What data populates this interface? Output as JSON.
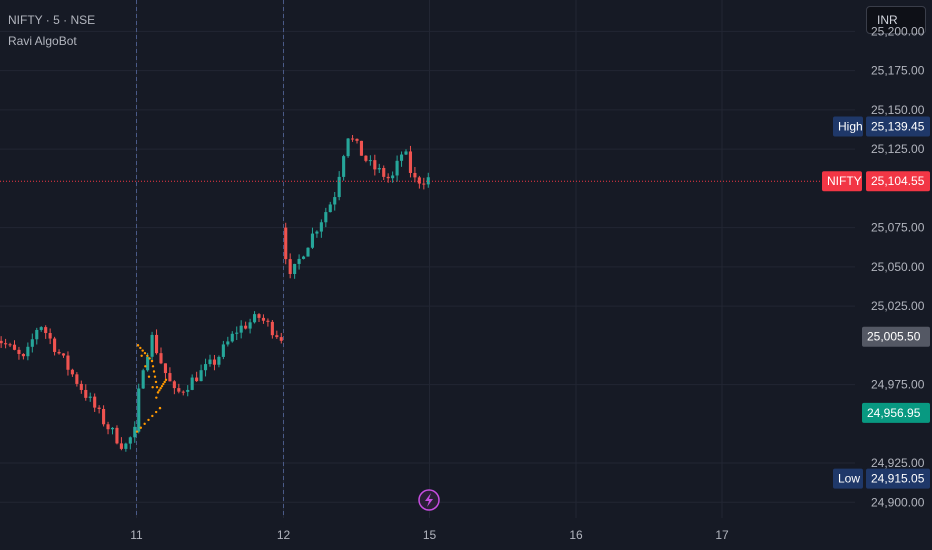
{
  "header": {
    "symbol": "NIFTY",
    "interval": "5",
    "exchange": "NSE",
    "indicator": "Ravi AlgoBot"
  },
  "currency_button": {
    "label": "INR"
  },
  "colors": {
    "background": "#161a25",
    "grid": "#222633",
    "up": "#26a69a",
    "down": "#ef5350",
    "session_line": "#4a5a88",
    "indicator_dots": "#ff9800",
    "high_low_tag": "#1f3869",
    "last_tag": "#f23645",
    "level_tag": "#545864",
    "support_tag": "#089981",
    "event_icon": "#c64de0"
  },
  "event_icon": "lightning-icon",
  "chart_data": {
    "type": "candlestick",
    "title": "",
    "ylim": [
      24890,
      25220
    ],
    "y_ticks": [
      "25,200.00",
      "25,175.00",
      "25,150.00",
      "25,125.00",
      "25,075.00",
      "25,050.00",
      "25,025.00",
      "24,975.00",
      "24,925.00",
      "24,900.00"
    ],
    "y_tick_values": [
      25200,
      25175,
      25150,
      25125,
      25075,
      25050,
      25025,
      24975,
      24925,
      24900
    ],
    "x_ticks": [
      "11",
      "12",
      "15",
      "16",
      "17"
    ],
    "session_days": [
      {
        "day": "10",
        "bars": 33,
        "open": 25010,
        "segments": [
          [
            0.25,
            24990
          ],
          [
            0.35,
            25015
          ],
          [
            0.55,
            24985
          ],
          [
            0.8,
            24950
          ],
          [
            0.93,
            24935
          ],
          [
            1.0,
            24945
          ]
        ]
      },
      {
        "day": "11",
        "bars": 33,
        "open": 24945,
        "segments": [
          [
            0.05,
            24985
          ],
          [
            0.12,
            25005
          ],
          [
            0.2,
            24985
          ],
          [
            0.28,
            24968
          ],
          [
            0.42,
            24980
          ],
          [
            0.55,
            24990
          ],
          [
            0.7,
            25010
          ],
          [
            0.85,
            25018
          ],
          [
            1.0,
            25005
          ]
        ]
      },
      {
        "day": "12",
        "bars": 33,
        "open": 25075,
        "segments": [
          [
            0.06,
            25042
          ],
          [
            0.15,
            25060
          ],
          [
            0.3,
            25085
          ],
          [
            0.36,
            25095
          ],
          [
            0.45,
            25135
          ],
          [
            0.6,
            25115
          ],
          [
            0.75,
            25105
          ],
          [
            0.83,
            25125
          ],
          [
            0.9,
            25105
          ],
          [
            1.0,
            25106
          ]
        ]
      }
    ],
    "annotations": {
      "high": {
        "label": "High",
        "value": 25139.45,
        "text": "25,139.45"
      },
      "low": {
        "label": "Low",
        "value": 24915.05,
        "text": "24,915.05"
      },
      "last": {
        "label": "NIFTY",
        "value": 25104.55,
        "text": "25,104.55"
      },
      "level": {
        "value": 25005.5,
        "text": "25,005.50"
      },
      "support": {
        "value": 24956.95,
        "text": "24,956.95"
      }
    }
  }
}
